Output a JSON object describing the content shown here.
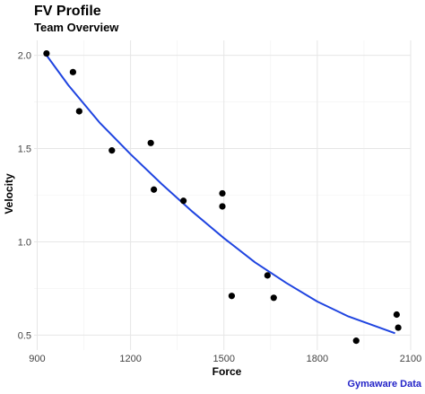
{
  "chart_data": {
    "type": "scatter",
    "title": "FV Profile",
    "subtitle": "Team Overview",
    "xlabel": "Force",
    "ylabel": "Velocity",
    "caption": "Gymaware Data",
    "xlim": [
      890,
      2100
    ],
    "ylim": [
      0.42,
      2.08
    ],
    "x_ticks": [
      900,
      1200,
      1500,
      1800,
      2100
    ],
    "y_ticks": [
      0.5,
      1.0,
      1.5,
      2.0
    ],
    "y_tick_labels": [
      "0.5",
      "1.0",
      "1.5",
      "2.0"
    ],
    "grid": true,
    "points": [
      {
        "x": 930,
        "y": 2.01
      },
      {
        "x": 1015,
        "y": 1.91
      },
      {
        "x": 1035,
        "y": 1.7
      },
      {
        "x": 1140,
        "y": 1.49
      },
      {
        "x": 1265,
        "y": 1.53
      },
      {
        "x": 1275,
        "y": 1.28
      },
      {
        "x": 1370,
        "y": 1.22
      },
      {
        "x": 1495,
        "y": 1.26
      },
      {
        "x": 1495,
        "y": 1.19
      },
      {
        "x": 1525,
        "y": 0.71
      },
      {
        "x": 1640,
        "y": 0.82
      },
      {
        "x": 1660,
        "y": 0.7
      },
      {
        "x": 1925,
        "y": 0.47
      },
      {
        "x": 2055,
        "y": 0.61
      },
      {
        "x": 2060,
        "y": 0.54
      }
    ],
    "fit_line": {
      "x": [
        930,
        1000,
        1100,
        1200,
        1300,
        1400,
        1500,
        1600,
        1700,
        1800,
        1900,
        2000,
        2050
      ],
      "y": [
        2.0,
        1.84,
        1.64,
        1.47,
        1.31,
        1.16,
        1.02,
        0.89,
        0.78,
        0.68,
        0.6,
        0.54,
        0.51
      ]
    },
    "colors": {
      "points": "#000000",
      "line": "#1f44e0",
      "grid": "#e6e6e6",
      "caption": "#2323c8"
    }
  }
}
